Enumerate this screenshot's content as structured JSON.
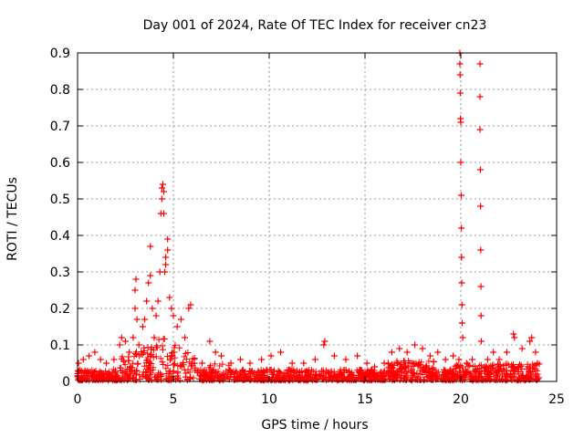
{
  "chart_data": {
    "type": "scatter",
    "title": "Day 001 of 2024, Rate Of TEC Index for receiver cn23",
    "xlabel": "GPS time / hours",
    "ylabel": "ROTI / TECUs",
    "xlim": [
      0,
      25
    ],
    "ylim": [
      0,
      0.9
    ],
    "xticks": [
      "0",
      "5",
      "10",
      "15",
      "20",
      "25"
    ],
    "yticks": [
      "0",
      "0.1",
      "0.2",
      "0.3",
      "0.4",
      "0.5",
      "0.6",
      "0.7",
      "0.8",
      "0.9"
    ],
    "grid": true,
    "marker": "plus",
    "color": "#ff0000",
    "series": [
      {
        "name": "ROTI",
        "points": [
          [
            0.05,
            0.05
          ],
          [
            0.3,
            0.06
          ],
          [
            0.6,
            0.07
          ],
          [
            0.9,
            0.08
          ],
          [
            1.2,
            0.06
          ],
          [
            1.5,
            0.05
          ],
          [
            1.9,
            0.06
          ],
          [
            2.2,
            0.1
          ],
          [
            2.3,
            0.12
          ],
          [
            2.5,
            0.11
          ],
          [
            2.7,
            0.08
          ],
          [
            2.9,
            0.12
          ],
          [
            3.0,
            0.2
          ],
          [
            3.0,
            0.25
          ],
          [
            3.05,
            0.28
          ],
          [
            3.1,
            0.17
          ],
          [
            3.2,
            0.1
          ],
          [
            3.4,
            0.15
          ],
          [
            3.5,
            0.17
          ],
          [
            3.6,
            0.22
          ],
          [
            3.7,
            0.27
          ],
          [
            3.8,
            0.29
          ],
          [
            3.8,
            0.37
          ],
          [
            3.9,
            0.2
          ],
          [
            4.0,
            0.12
          ],
          [
            4.1,
            0.18
          ],
          [
            4.2,
            0.22
          ],
          [
            4.3,
            0.3
          ],
          [
            4.35,
            0.46
          ],
          [
            4.4,
            0.5
          ],
          [
            4.4,
            0.53
          ],
          [
            4.45,
            0.54
          ],
          [
            4.5,
            0.46
          ],
          [
            4.5,
            0.52
          ],
          [
            4.55,
            0.3
          ],
          [
            4.6,
            0.32
          ],
          [
            4.6,
            0.34
          ],
          [
            4.7,
            0.36
          ],
          [
            4.7,
            0.39
          ],
          [
            4.8,
            0.23
          ],
          [
            4.9,
            0.2
          ],
          [
            5.0,
            0.18
          ],
          [
            5.2,
            0.15
          ],
          [
            5.4,
            0.17
          ],
          [
            5.6,
            0.12
          ],
          [
            5.8,
            0.2
          ],
          [
            5.9,
            0.21
          ],
          [
            6.1,
            0.05
          ],
          [
            6.5,
            0.05
          ],
          [
            6.9,
            0.11
          ],
          [
            7.2,
            0.08
          ],
          [
            7.5,
            0.07
          ],
          [
            8.0,
            0.05
          ],
          [
            8.5,
            0.06
          ],
          [
            9.0,
            0.05
          ],
          [
            9.6,
            0.06
          ],
          [
            10.1,
            0.07
          ],
          [
            10.6,
            0.08
          ],
          [
            11.2,
            0.05
          ],
          [
            11.8,
            0.05
          ],
          [
            12.4,
            0.06
          ],
          [
            12.85,
            0.1
          ],
          [
            12.9,
            0.11
          ],
          [
            13.4,
            0.07
          ],
          [
            14.0,
            0.06
          ],
          [
            14.6,
            0.07
          ],
          [
            15.1,
            0.05
          ],
          [
            15.5,
            0.04
          ],
          [
            16.0,
            0.05
          ],
          [
            16.4,
            0.08
          ],
          [
            16.8,
            0.09
          ],
          [
            17.2,
            0.08
          ],
          [
            17.6,
            0.1
          ],
          [
            18.0,
            0.09
          ],
          [
            18.4,
            0.07
          ],
          [
            18.8,
            0.08
          ],
          [
            19.2,
            0.06
          ],
          [
            19.6,
            0.07
          ],
          [
            19.9,
            0.06
          ],
          [
            19.95,
            0.9
          ],
          [
            19.95,
            0.87
          ],
          [
            19.96,
            0.84
          ],
          [
            19.97,
            0.79
          ],
          [
            19.98,
            0.72
          ],
          [
            20.0,
            0.71
          ],
          [
            20.0,
            0.6
          ],
          [
            20.02,
            0.51
          ],
          [
            20.03,
            0.42
          ],
          [
            20.04,
            0.34
          ],
          [
            20.05,
            0.27
          ],
          [
            20.06,
            0.21
          ],
          [
            20.07,
            0.16
          ],
          [
            20.1,
            0.12
          ],
          [
            20.3,
            0.05
          ],
          [
            20.6,
            0.06
          ],
          [
            21.0,
            0.87
          ],
          [
            21.0,
            0.78
          ],
          [
            21.0,
            0.69
          ],
          [
            21.02,
            0.58
          ],
          [
            21.03,
            0.48
          ],
          [
            21.04,
            0.36
          ],
          [
            21.05,
            0.26
          ],
          [
            21.06,
            0.18
          ],
          [
            21.07,
            0.11
          ],
          [
            21.4,
            0.06
          ],
          [
            21.7,
            0.08
          ],
          [
            22.0,
            0.06
          ],
          [
            22.4,
            0.08
          ],
          [
            22.75,
            0.13
          ],
          [
            22.8,
            0.12
          ],
          [
            23.2,
            0.09
          ],
          [
            23.6,
            0.11
          ],
          [
            23.7,
            0.12
          ],
          [
            23.9,
            0.08
          ],
          [
            24.0,
            0.05
          ]
        ]
      }
    ]
  }
}
